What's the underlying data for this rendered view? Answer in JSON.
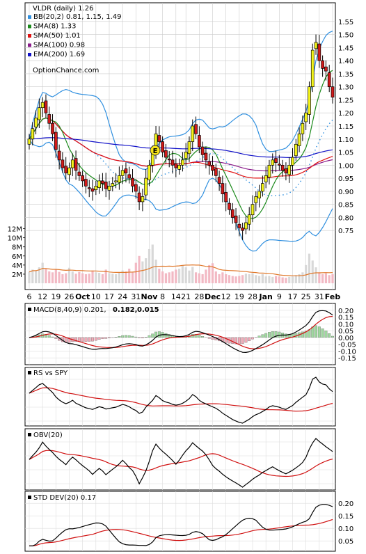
{
  "chart_data": [
    {
      "type": "candlestick",
      "title": "VLDR (daily) 1.26",
      "legend": [
        {
          "label": "BB(20,2) 0.81, 1.15, 1.49",
          "color": "#2f8fdf"
        },
        {
          "label": "SMA(8) 1.33",
          "color": "#1b8a1b"
        },
        {
          "label": "SMA(50) 1.01",
          "color": "#e01010"
        },
        {
          "label": "SMA(100) 0.98",
          "color": "#8a1a8a"
        },
        {
          "label": "EMA(200) 1.69",
          "color": "#1010c8"
        }
      ],
      "watermark": "OptionChance.com",
      "earnings_marker": "E",
      "ylim": [
        0.7,
        1.6
      ],
      "price_ticks": [
        "1.55",
        "1.50",
        "1.45",
        "1.40",
        "1.35",
        "1.30",
        "1.25",
        "1.20",
        "1.15",
        "1.10",
        "1.05",
        "1.00",
        "0.95",
        "0.90",
        "0.85",
        "0.80",
        "0.75"
      ],
      "volume_ticks": [
        "12M",
        "10M",
        "8M",
        "6M",
        "4M",
        "2M"
      ],
      "x_labels": [
        "6",
        "12",
        "19",
        "26",
        "Oct",
        "10",
        "17",
        "24",
        "31",
        "Nov",
        "8",
        "14",
        "21",
        "28",
        "Dec",
        "12",
        "19",
        "28",
        "Jan",
        "9",
        "17",
        "25",
        "31",
        "Feb"
      ],
      "close": [
        1.1,
        1.14,
        1.18,
        1.22,
        1.24,
        1.2,
        1.16,
        1.12,
        1.06,
        1.02,
        0.99,
        0.97,
        0.99,
        1.02,
        0.98,
        0.96,
        0.94,
        0.92,
        0.91,
        0.9,
        0.92,
        0.94,
        0.93,
        0.91,
        0.92,
        0.93,
        0.94,
        0.96,
        0.98,
        0.97,
        0.95,
        0.92,
        0.9,
        0.86,
        0.88,
        0.95,
        1.0,
        1.05,
        1.12,
        1.09,
        1.05,
        1.03,
        1.02,
        1.0,
        0.99,
        1.0,
        1.02,
        1.05,
        1.09,
        1.15,
        1.12,
        1.07,
        1.04,
        1.02,
        1.0,
        0.98,
        0.96,
        0.93,
        0.89,
        0.86,
        0.83,
        0.8,
        0.78,
        0.76,
        0.75,
        0.78,
        0.81,
        0.85,
        0.88,
        0.9,
        0.93,
        0.96,
        1.0,
        1.02,
        1.01,
        1.0,
        0.98,
        0.97,
        1.0,
        1.03,
        1.08,
        1.12,
        1.16,
        1.2,
        1.3,
        1.44,
        1.47,
        1.4,
        1.37,
        1.36,
        1.3,
        1.26
      ],
      "volume_m": [
        2.5,
        3.0,
        2.8,
        3.5,
        4.5,
        3.2,
        2.6,
        2.4,
        3.0,
        2.5,
        2.0,
        2.2,
        3.4,
        2.6,
        2.1,
        2.5,
        2.2,
        2.0,
        2.1,
        2.8,
        2.4,
        2.3,
        2.0,
        3.0,
        2.2,
        2.1,
        2.0,
        2.4,
        2.8,
        2.6,
        3.2,
        2.4,
        4.5,
        6.0,
        4.8,
        5.5,
        7.5,
        8.5,
        5.2,
        3.2,
        2.6,
        2.2,
        2.4,
        2.6,
        3.0,
        3.2,
        4.0,
        3.5,
        2.8,
        3.6,
        2.4,
        2.2,
        2.0,
        3.0,
        4.0,
        4.4,
        2.6,
        2.0,
        2.4,
        2.0,
        1.8,
        1.6,
        1.5,
        1.6,
        1.8,
        2.1,
        2.0,
        2.2,
        1.8,
        1.6,
        2.0,
        1.5,
        1.6,
        1.4,
        1.6,
        1.5,
        1.3,
        1.2,
        1.4,
        1.5,
        1.8,
        2.0,
        2.4,
        4.0,
        6.5,
        5.0,
        3.5,
        2.4,
        2.0,
        2.2,
        1.8,
        2.0
      ]
    },
    {
      "type": "line",
      "title": "MACD(8,40,9) 0.201,",
      "macd_value": "0.182,",
      "macd_value_color": "#cc0000",
      "signal_value": "0.015",
      "signal_value_color": "#2255cc",
      "ylim": [
        -0.18,
        0.23
      ],
      "y_ticks": [
        "0.20",
        "0.15",
        "0.10",
        "0.05",
        "0.00",
        "-0.05",
        "-0.10",
        "-0.15"
      ]
    },
    {
      "type": "line",
      "title": "RS vs SPY"
    },
    {
      "type": "line",
      "title": "OBV(20)"
    },
    {
      "type": "line",
      "title": "STD DEV(20) 0.17",
      "ylim": [
        0.02,
        0.22
      ],
      "y_ticks": [
        "0.20",
        "0.15",
        "0.10",
        "0.05"
      ]
    }
  ]
}
